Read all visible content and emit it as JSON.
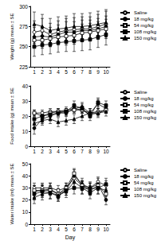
{
  "chart_data": [
    {
      "type": "line",
      "y_label": "Weight (g) mean ± SE",
      "x": [
        1,
        2,
        3,
        4,
        5,
        6,
        7,
        8,
        9,
        10
      ],
      "xlim": [
        0.5,
        10.5
      ],
      "xticks": [
        1,
        2,
        3,
        4,
        5,
        6,
        7,
        8,
        9,
        10
      ],
      "ylim": [
        225,
        300
      ],
      "yticks": [
        225,
        250,
        275,
        300
      ],
      "legend": "top-right",
      "series": [
        {
          "name": "Saline",
          "color": "#000000",
          "marker": "open_circle",
          "values": [
            268,
            270,
            265,
            268,
            270,
            271,
            272,
            272,
            275,
            278
          ],
          "errors": [
            14,
            15,
            14,
            14,
            15,
            15,
            15,
            15,
            15,
            16
          ]
        },
        {
          "name": "18 mg/kg",
          "color": "#000000",
          "marker": "circle",
          "values": [
            262,
            263,
            262,
            265,
            268,
            268,
            270,
            270,
            272,
            275
          ],
          "errors": [
            12,
            12,
            12,
            12,
            13,
            13,
            13,
            13,
            13,
            13
          ]
        },
        {
          "name": "54 mg/kg",
          "color": "#000000",
          "marker": "open_square",
          "values": [
            258,
            258,
            260,
            262,
            263,
            264,
            267,
            268,
            270,
            272
          ],
          "errors": [
            10,
            10,
            10,
            10,
            11,
            11,
            11,
            11,
            11,
            12
          ]
        },
        {
          "name": "108 mg/kg",
          "color": "#000000",
          "marker": "square",
          "values": [
            250,
            252,
            253,
            255,
            256,
            257,
            258,
            259,
            262,
            265
          ],
          "errors": [
            12,
            12,
            12,
            12,
            12,
            13,
            13,
            13,
            13,
            13
          ]
        },
        {
          "name": "150 mg/kg",
          "color": "#000000",
          "marker": "triangle",
          "values": [
            278,
            275,
            270,
            272,
            273,
            275,
            275,
            276,
            278,
            280
          ],
          "errors": [
            15,
            15,
            15,
            15,
            15,
            16,
            16,
            16,
            16,
            16
          ]
        }
      ]
    },
    {
      "type": "line",
      "y_label": "Food intake (g) mean ± SE",
      "x": [
        1,
        2,
        3,
        4,
        5,
        6,
        7,
        8,
        9,
        10
      ],
      "xlim": [
        0.5,
        10.5
      ],
      "xticks": [
        1,
        2,
        3,
        4,
        5,
        6,
        7,
        8,
        9,
        10
      ],
      "ylim": [
        0,
        40
      ],
      "yticks": [
        0,
        10,
        20,
        30,
        40
      ],
      "legend": "top-right",
      "series": [
        {
          "name": "Saline",
          "color": "#000000",
          "marker": "open_circle",
          "values": [
            22,
            22,
            23,
            23,
            24,
            25,
            24,
            22,
            23,
            24
          ],
          "errors": [
            2,
            2,
            2,
            2,
            2,
            2,
            2,
            2,
            2,
            2
          ]
        },
        {
          "name": "18 mg/kg",
          "color": "#000000",
          "marker": "circle",
          "values": [
            12,
            18,
            20,
            22,
            22,
            25,
            26,
            22,
            28,
            25
          ],
          "errors": [
            4,
            3,
            3,
            2,
            2,
            3,
            3,
            3,
            3,
            3
          ]
        },
        {
          "name": "54 mg/kg",
          "color": "#000000",
          "marker": "open_square",
          "values": [
            22,
            20,
            22,
            23,
            23,
            24,
            24,
            21,
            22,
            24
          ],
          "errors": [
            2,
            2,
            2,
            2,
            2,
            2,
            2,
            2,
            2,
            2
          ]
        },
        {
          "name": "108 mg/kg",
          "color": "#000000",
          "marker": "square",
          "values": [
            18,
            20,
            21,
            22,
            23,
            27,
            25,
            20,
            29,
            27
          ],
          "errors": [
            3,
            3,
            2,
            2,
            2,
            3,
            3,
            3,
            3,
            3
          ]
        },
        {
          "name": "150 mg/kg",
          "color": "#000000",
          "marker": "triangle",
          "values": [
            15,
            17,
            18,
            16,
            17,
            18,
            20,
            22,
            22,
            23
          ],
          "errors": [
            3,
            3,
            3,
            3,
            3,
            3,
            3,
            3,
            3,
            3
          ]
        }
      ]
    },
    {
      "type": "line",
      "y_label": "Water intake (ml) mean ± SE",
      "x_label": "Day",
      "x": [
        1,
        2,
        3,
        4,
        5,
        6,
        7,
        8,
        9,
        10
      ],
      "xlim": [
        0.5,
        10.5
      ],
      "xticks": [
        1,
        2,
        3,
        4,
        5,
        6,
        7,
        8,
        9,
        10
      ],
      "ylim": [
        0,
        50
      ],
      "yticks": [
        0,
        10,
        20,
        30,
        40,
        50
      ],
      "legend": "top-right",
      "series": [
        {
          "name": "Saline",
          "color": "#000000",
          "marker": "open_circle",
          "values": [
            30,
            30,
            30,
            28,
            30,
            38,
            32,
            30,
            35,
            32
          ],
          "errors": [
            4,
            4,
            4,
            4,
            4,
            4,
            4,
            4,
            4,
            4
          ]
        },
        {
          "name": "18 mg/kg",
          "color": "#000000",
          "marker": "circle",
          "values": [
            27,
            28,
            29,
            25,
            28,
            40,
            33,
            30,
            33,
            20
          ],
          "errors": [
            5,
            5,
            5,
            4,
            4,
            5,
            5,
            5,
            5,
            4
          ]
        },
        {
          "name": "54 mg/kg",
          "color": "#000000",
          "marker": "open_square",
          "values": [
            28,
            28,
            28,
            25,
            30,
            42,
            32,
            28,
            32,
            25
          ],
          "errors": [
            4,
            4,
            4,
            4,
            4,
            4,
            4,
            4,
            4,
            4
          ]
        },
        {
          "name": "108 mg/kg",
          "color": "#000000",
          "marker": "square",
          "values": [
            25,
            27,
            26,
            23,
            28,
            30,
            30,
            26,
            30,
            33
          ],
          "errors": [
            5,
            5,
            5,
            4,
            4,
            5,
            5,
            5,
            5,
            5
          ]
        },
        {
          "name": "150 mg/kg",
          "color": "#000000",
          "marker": "triangle",
          "values": [
            22,
            25,
            26,
            24,
            27,
            35,
            30,
            29,
            30,
            28
          ],
          "errors": [
            5,
            5,
            5,
            5,
            5,
            5,
            5,
            5,
            5,
            5
          ]
        }
      ]
    }
  ]
}
